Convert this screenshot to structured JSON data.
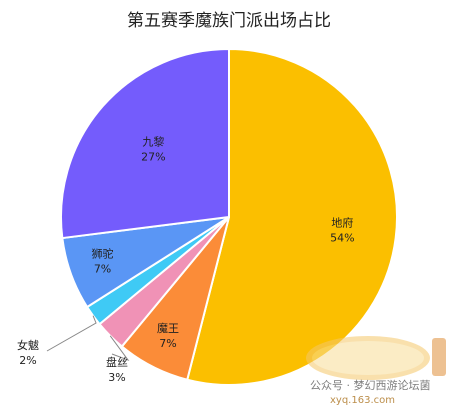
{
  "chart_data": {
    "type": "pie",
    "title": "第五赛季魔族门派出场占比",
    "slices": [
      {
        "name": "地府",
        "percent_label": "54%",
        "value": 54,
        "color": "#fbbf00"
      },
      {
        "name": "魔王",
        "percent_label": "7%",
        "value": 7,
        "color": "#fb8c38"
      },
      {
        "name": "盘丝",
        "percent_label": "3%",
        "value": 3,
        "color": "#f092b6"
      },
      {
        "name": "女魃",
        "percent_label": "2%",
        "value": 2,
        "color": "#3fcaf5"
      },
      {
        "name": "狮驼",
        "percent_label": "7%",
        "value": 7,
        "color": "#5a96f5"
      },
      {
        "name": "九黎",
        "percent_label": "27%",
        "value": 27,
        "color": "#745cfc"
      }
    ],
    "start_angle_deg": 0,
    "direction": "clockwise",
    "border_color": "#ffffff"
  },
  "watermark": {
    "logo_text": "梦幻西游",
    "account_text": "公众号 · 梦幻西游论坛菌",
    "url_text": "xyq.163.com"
  }
}
